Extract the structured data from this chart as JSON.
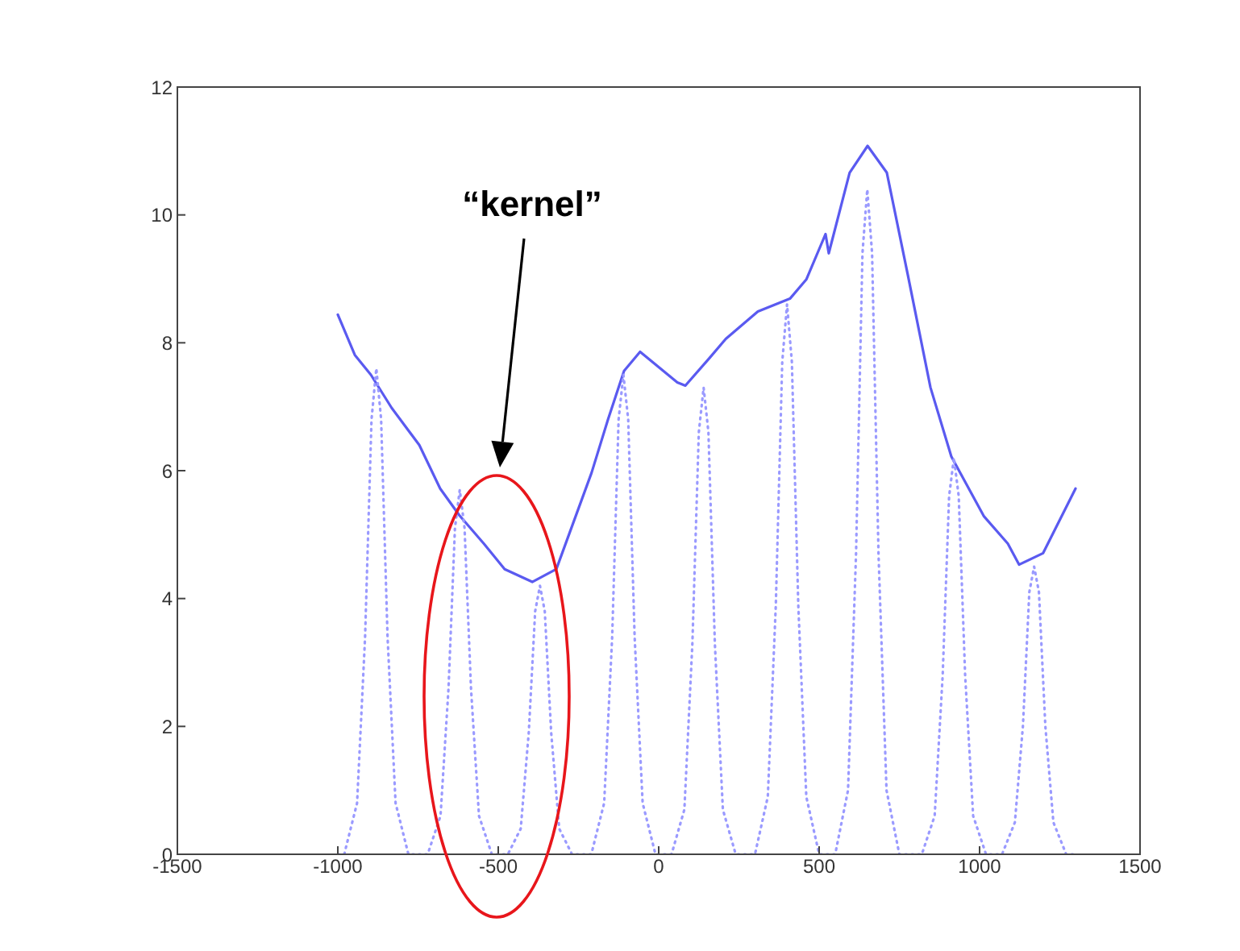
{
  "chart_data": {
    "type": "line",
    "xlim": [
      -1500,
      1500
    ],
    "xticks": [
      -1500,
      -1000,
      -500,
      0,
      500,
      1000,
      1500
    ],
    "ylim": [
      0,
      12
    ],
    "yticks": [
      0,
      2,
      4,
      6,
      8,
      10,
      12
    ],
    "grid": false,
    "marker": "none",
    "annotations": [
      "“kernel”"
    ],
    "series": [
      {
        "color": "#5a5af0",
        "line_style": "solid",
        "x": [
          -1000,
          -947,
          -897,
          -832,
          -746,
          -681,
          -621,
          -545,
          -480,
          -394,
          -319,
          -209,
          -158,
          -108,
          -58,
          58,
          83,
          158,
          209,
          309,
          409,
          460,
          520,
          530,
          595,
          651,
          711,
          776,
          847,
          912,
          1013,
          1088,
          1123,
          1198,
          1299
        ],
        "values": [
          8.44,
          7.81,
          7.5,
          6.98,
          6.4,
          5.72,
          5.3,
          4.86,
          4.46,
          4.26,
          4.46,
          5.97,
          6.8,
          7.56,
          7.86,
          7.38,
          7.33,
          7.76,
          8.06,
          8.49,
          8.69,
          8.99,
          9.7,
          9.4,
          10.66,
          11.08,
          10.66,
          9.07,
          7.3,
          6.22,
          5.29,
          4.86,
          4.53,
          4.71,
          5.72
        ]
      },
      {
        "color": "#9a9aff",
        "line_style": "dotted",
        "x": [
          -1000,
          -980,
          -940,
          -915,
          -895,
          -880,
          -865,
          -845,
          -820,
          -780,
          -720,
          -680,
          -655,
          -635,
          -620,
          -605,
          -585,
          -560,
          -520,
          -470,
          -430,
          -405,
          -385,
          -370,
          -355,
          -335,
          -310,
          -270,
          -210,
          -170,
          -145,
          -125,
          -110,
          -95,
          -75,
          -50,
          -10,
          40,
          80,
          105,
          125,
          140,
          155,
          175,
          200,
          240,
          300,
          340,
          365,
          385,
          400,
          415,
          435,
          460,
          500,
          550,
          590,
          615,
          635,
          650,
          665,
          685,
          710,
          750,
          820,
          860,
          885,
          905,
          920,
          935,
          955,
          980,
          1020,
          1070,
          1110,
          1135,
          1155,
          1170,
          1185,
          1205,
          1230,
          1270,
          1300
        ],
        "values": [
          0,
          0,
          0.8,
          3.4,
          6.8,
          7.6,
          6.8,
          3.4,
          0.8,
          0,
          0,
          0.6,
          2.6,
          5.1,
          5.7,
          5.1,
          2.6,
          0.6,
          0,
          0,
          0.4,
          1.9,
          3.8,
          4.2,
          3.8,
          1.9,
          0.4,
          0,
          0,
          0.8,
          3.4,
          6.8,
          7.5,
          6.8,
          3.4,
          0.8,
          0,
          0,
          0.7,
          3.3,
          6.6,
          7.3,
          6.6,
          3.3,
          0.7,
          0,
          0,
          0.9,
          3.9,
          7.7,
          8.6,
          7.7,
          3.9,
          0.9,
          0,
          0,
          1,
          4.7,
          9.4,
          10.4,
          9.4,
          4.7,
          1,
          0,
          0,
          0.6,
          2.8,
          5.6,
          6.2,
          5.6,
          2.8,
          0.6,
          0,
          0,
          0.5,
          2,
          4.1,
          4.5,
          4.1,
          2,
          0.5,
          0,
          0
        ]
      }
    ]
  }
}
